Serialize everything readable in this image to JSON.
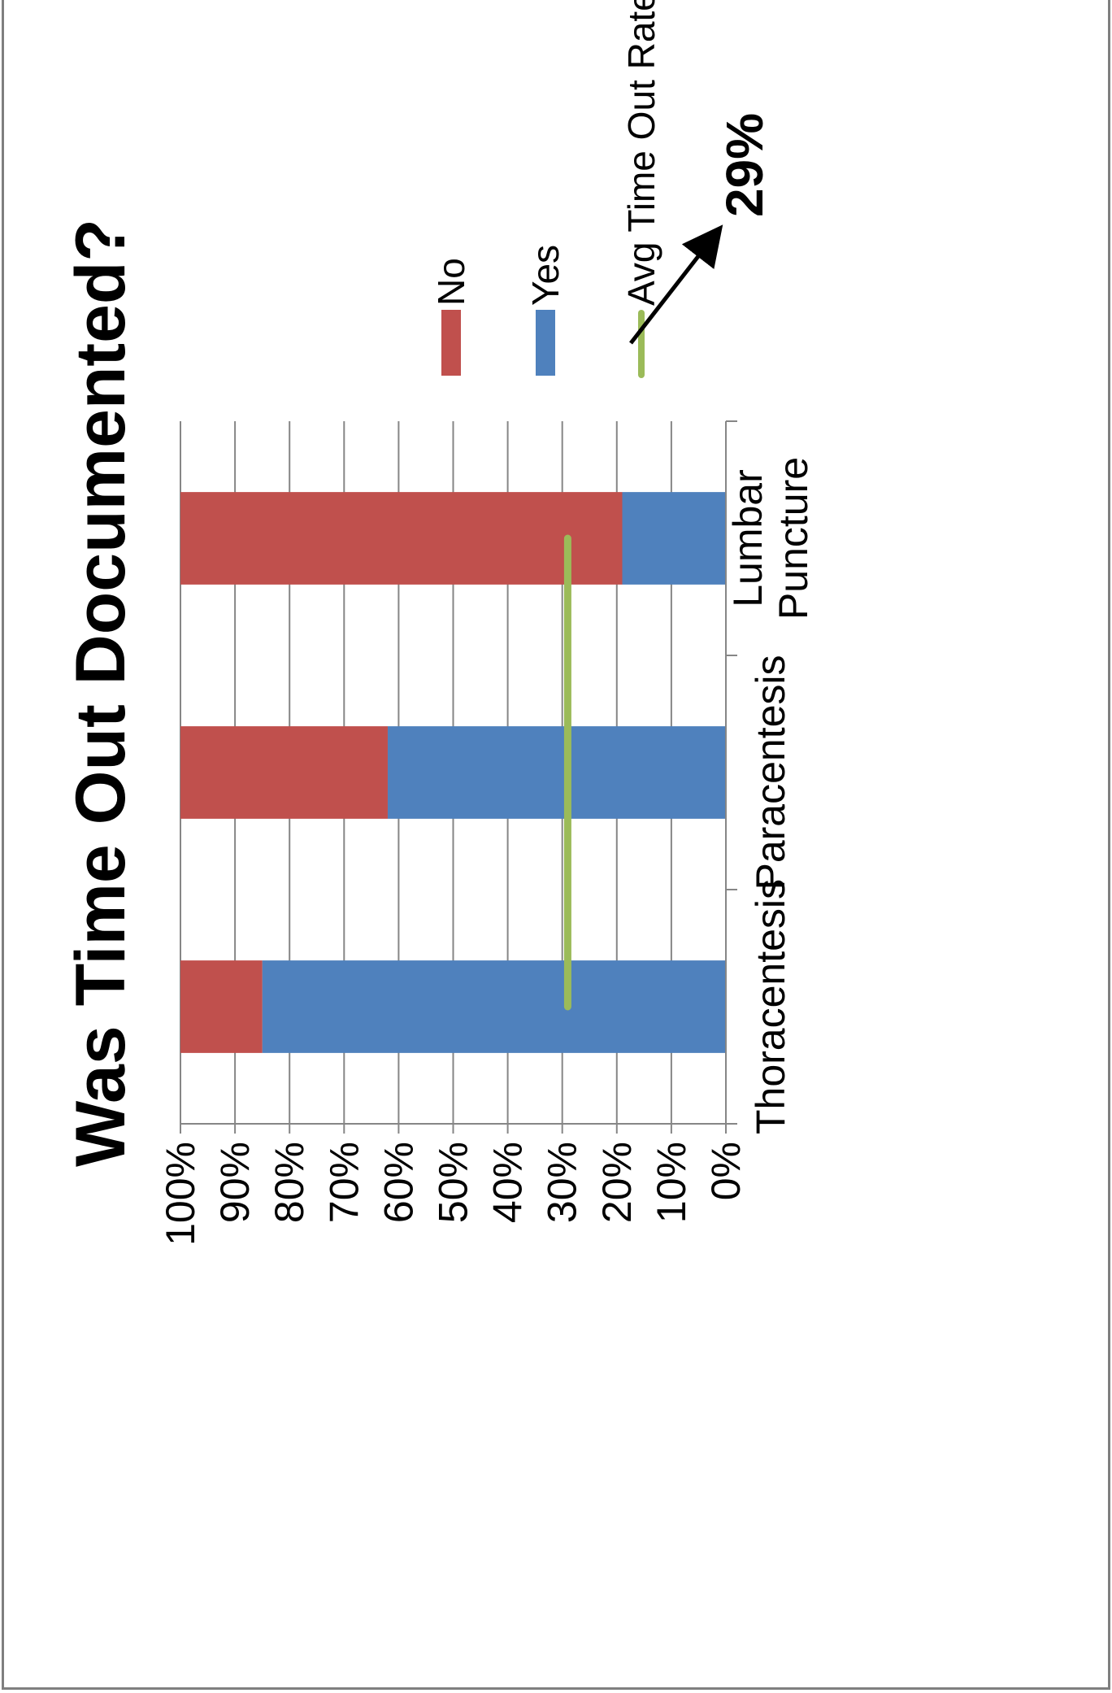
{
  "chart_data": {
    "type": "bar",
    "stacked": true,
    "orientation": "vertical (image rotated 90° counter-clockwise)",
    "title": "Was Time Out Documented?",
    "categories": [
      "Thoracentesis",
      "Paracentesis",
      "Lumbar Puncture"
    ],
    "series": [
      {
        "name": "Yes",
        "color": "#4f81bd",
        "values": [
          85,
          62,
          19
        ]
      },
      {
        "name": "No",
        "color": "#c0504d",
        "values": [
          15,
          38,
          81
        ]
      }
    ],
    "reference_line": {
      "name": "Avg Time Out Rate",
      "color": "#9bbb59",
      "value": 29
    },
    "annotation": "29%",
    "yticks": [
      "0%",
      "10%",
      "20%",
      "30%",
      "40%",
      "50%",
      "60%",
      "70%",
      "80%",
      "90%",
      "100%"
    ],
    "ylim": [
      0,
      100
    ],
    "grid": true,
    "legend_position": "right"
  }
}
